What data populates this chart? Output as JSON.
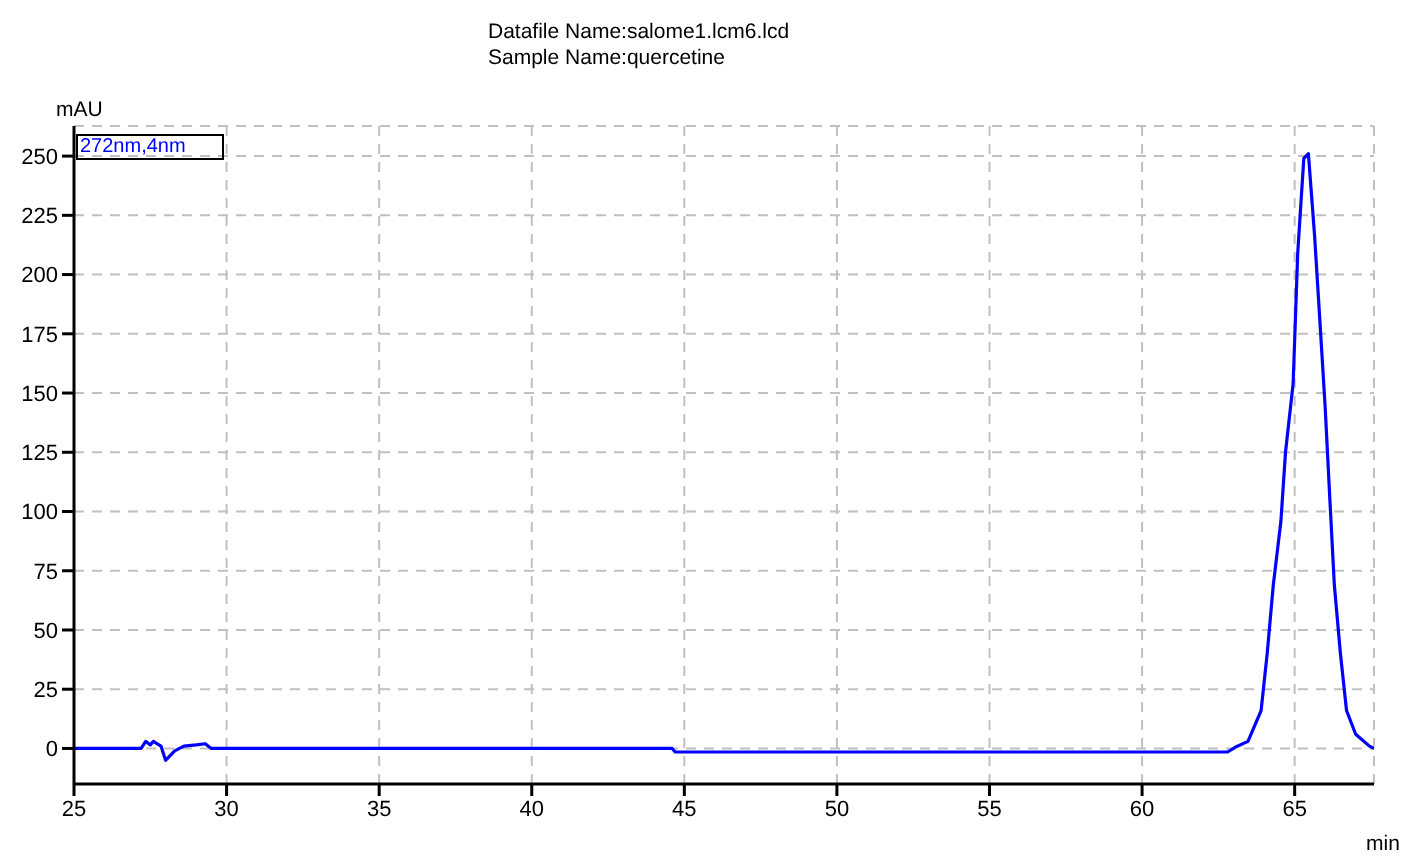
{
  "chart_data": {
    "type": "line",
    "title": "Datafile Name:salome1.lcm6.lcd",
    "subtitle": "Sample Name:quercetine",
    "xlabel": "min",
    "ylabel": "mAU",
    "series": [
      {
        "name": "272nm,4nm",
        "color": "#0000ff",
        "x": [
          25,
          27.2,
          27.35,
          27.5,
          27.6,
          27.85,
          28.0,
          28.3,
          28.6,
          29.0,
          29.3,
          29.5,
          44.6,
          44.7,
          62.8,
          63.05,
          63.47,
          63.9,
          64.1,
          64.3,
          64.55,
          64.7,
          64.95,
          65.1,
          65.3,
          65.45,
          65.65,
          65.8,
          66.0,
          66.15,
          66.3,
          66.5,
          66.7,
          67.0,
          67.45,
          67.6
        ],
        "values": [
          0,
          0,
          3,
          1.5,
          3,
          1,
          -5,
          -1,
          1,
          1.5,
          2,
          0,
          0,
          -1.5,
          -1.5,
          0.5,
          3,
          16,
          40,
          69,
          96,
          125,
          154,
          209,
          249,
          251,
          217,
          186,
          144,
          106,
          69,
          40,
          16,
          6,
          1,
          0
        ]
      }
    ],
    "xlim": [
      25,
      67.6
    ],
    "xticks": [
      25,
      30,
      35,
      40,
      45,
      50,
      55,
      60,
      65
    ],
    "ylim": [
      -15,
      262.7
    ],
    "yticks": [
      0,
      25,
      50,
      75,
      100,
      125,
      150,
      175,
      200,
      225,
      250
    ],
    "grid": true,
    "line_style": "solid",
    "marker": "none",
    "legend": "top left"
  }
}
